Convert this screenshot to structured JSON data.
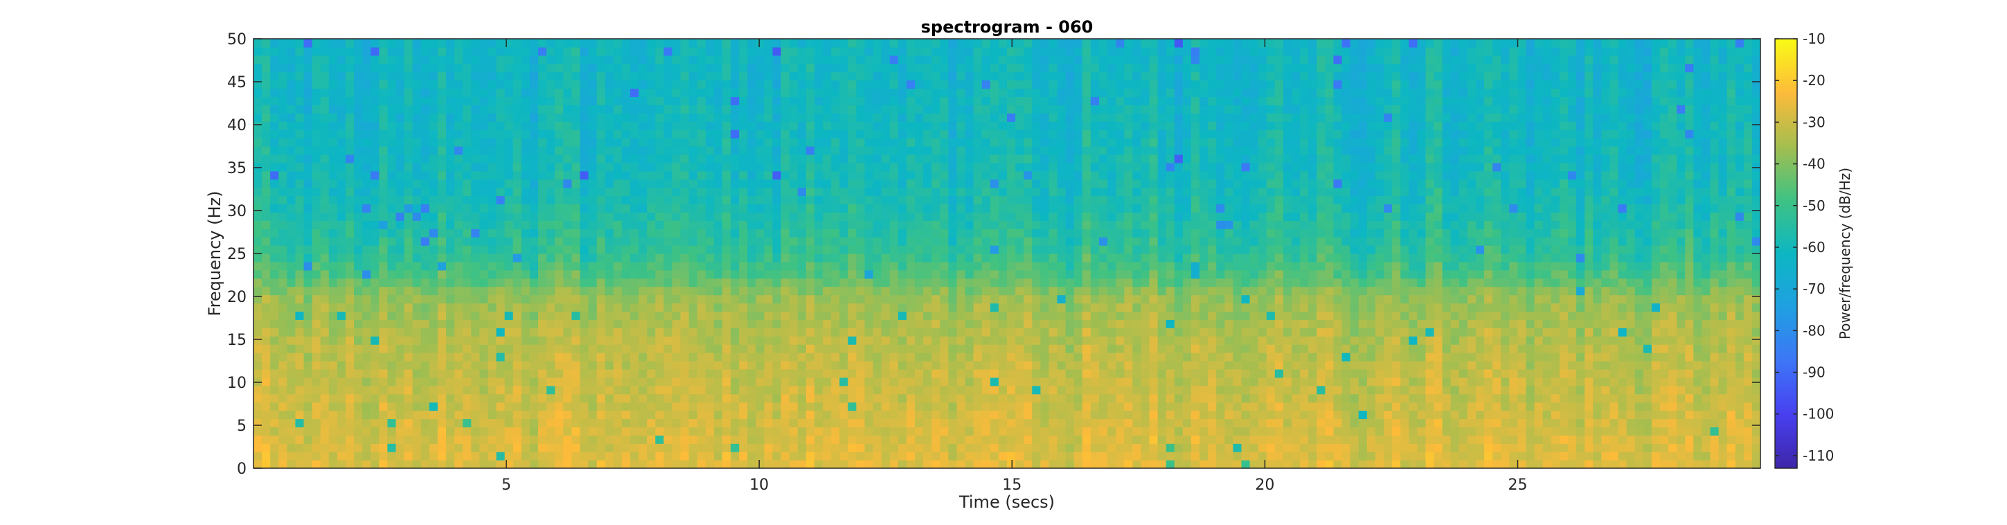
{
  "chart_data": {
    "type": "heatmap",
    "title": "spectrogram - 060",
    "xlabel": "Time (secs)",
    "ylabel": "Frequency (Hz)",
    "xlim": [
      0,
      29.8
    ],
    "ylim": [
      0,
      50
    ],
    "xticks": [
      5,
      10,
      15,
      20,
      25
    ],
    "yticks": [
      0,
      5,
      10,
      15,
      20,
      25,
      30,
      35,
      40,
      45,
      50
    ],
    "colorbar": {
      "label": "Power/frequency (dB/Hz)",
      "range": [
        -113,
        -10
      ],
      "ticks": [
        -110,
        -100,
        -90,
        -80,
        -70,
        -60,
        -50,
        -40,
        -30,
        -20,
        -10
      ],
      "colormap": "parula"
    },
    "power_profile": {
      "frequency_hz": [
        0,
        5,
        10,
        15,
        20,
        22,
        25,
        30,
        35,
        40,
        45,
        50
      ],
      "mean_power_db": [
        -27,
        -29,
        -31,
        -33,
        -37,
        -45,
        -52,
        -57,
        -60,
        -61,
        -62,
        -62
      ]
    }
  }
}
